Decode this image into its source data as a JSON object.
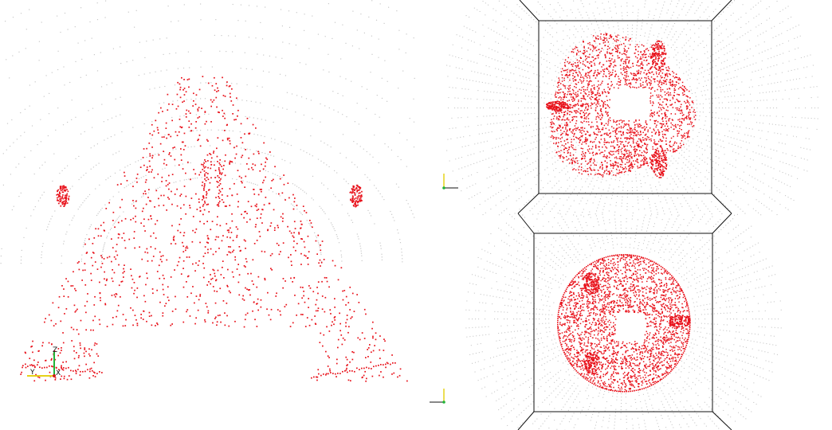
{
  "viewports": {
    "left": {
      "axes": {
        "z_label": "Z",
        "y_label": "Y",
        "x_label": "X"
      }
    },
    "top_right": {},
    "bottom_right": {}
  },
  "colors": {
    "background": "#ffffff",
    "point": "#e8111a",
    "faint_point": "#c8c8c8",
    "frame": "#111111",
    "axis_x": "#d21a1a",
    "axis_y": "#e6d21a",
    "axis_z": "#21b43a"
  }
}
